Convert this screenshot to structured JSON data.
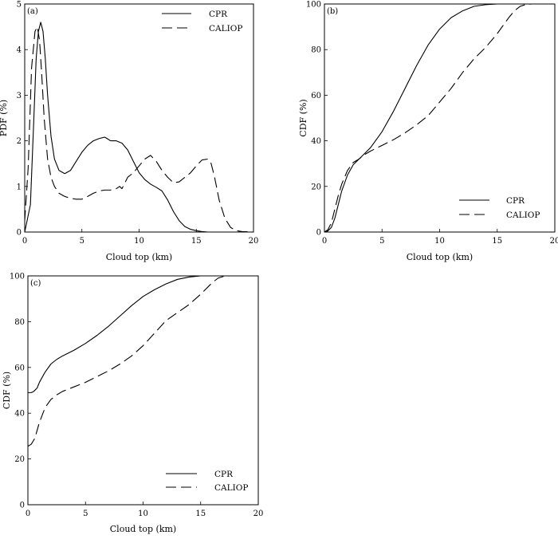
{
  "chart_data": [
    {
      "type": "line",
      "panel_label": "(a)",
      "xlabel": "Cloud top (km)",
      "ylabel": "PDF (%)",
      "xlim": [
        0,
        20
      ],
      "ylim": [
        0,
        5
      ],
      "xticks": [
        0,
        5,
        10,
        15,
        20
      ],
      "yticks": [
        0,
        1,
        2,
        3,
        4,
        5
      ],
      "legend_position": "top-right",
      "series": [
        {
          "name": "CPR",
          "style": "solid",
          "x": [
            0,
            0.5,
            0.8,
            1.0,
            1.2,
            1.4,
            1.6,
            1.8,
            2.0,
            2.3,
            2.6,
            3.0,
            3.5,
            4.0,
            4.5,
            5.0,
            5.5,
            6.0,
            6.5,
            7.0,
            7.2,
            7.5,
            8.0,
            8.5,
            9.0,
            9.5,
            10.0,
            10.5,
            11.0,
            11.5,
            12.0,
            12.5,
            13.0,
            13.5,
            14.0,
            14.5,
            15.0,
            15.5,
            16.0,
            17.0,
            18.0
          ],
          "y": [
            0,
            0.6,
            2.5,
            3.8,
            4.4,
            4.6,
            4.4,
            3.8,
            3.0,
            2.1,
            1.6,
            1.35,
            1.28,
            1.35,
            1.55,
            1.75,
            1.9,
            2.0,
            2.05,
            2.08,
            2.05,
            2.0,
            2.0,
            1.95,
            1.8,
            1.55,
            1.3,
            1.15,
            1.05,
            0.98,
            0.9,
            0.7,
            0.45,
            0.25,
            0.12,
            0.06,
            0.03,
            0.01,
            0,
            0,
            0
          ]
        },
        {
          "name": "CALIOP",
          "style": "dashed",
          "x": [
            0,
            0.3,
            0.6,
            0.9,
            1.1,
            1.3,
            1.5,
            1.7,
            2.0,
            2.3,
            2.6,
            3.0,
            3.5,
            4.0,
            4.5,
            5.0,
            5.5,
            6.0,
            6.5,
            7.0,
            7.5,
            8.0,
            8.3,
            8.5,
            8.8,
            9.0,
            9.5,
            10.0,
            10.5,
            11.0,
            11.5,
            12.0,
            12.5,
            13.0,
            13.5,
            14.0,
            14.5,
            15.0,
            15.5,
            16.0,
            16.3,
            16.6,
            17.0,
            17.5,
            18.0,
            18.5,
            19.0,
            20.0
          ],
          "y": [
            0.25,
            1.4,
            3.6,
            4.4,
            4.5,
            4.2,
            3.4,
            2.5,
            1.6,
            1.2,
            1.0,
            0.85,
            0.78,
            0.74,
            0.72,
            0.72,
            0.78,
            0.85,
            0.9,
            0.92,
            0.92,
            0.95,
            1.0,
            0.95,
            1.1,
            1.2,
            1.3,
            1.45,
            1.6,
            1.68,
            1.55,
            1.35,
            1.2,
            1.08,
            1.1,
            1.2,
            1.3,
            1.45,
            1.58,
            1.6,
            1.5,
            1.2,
            0.7,
            0.3,
            0.1,
            0.03,
            0.01,
            0
          ]
        }
      ]
    },
    {
      "type": "line",
      "panel_label": "(b)",
      "xlabel": "Cloud top (km)",
      "ylabel": "CDF (%)",
      "xlim": [
        0,
        20
      ],
      "ylim": [
        0,
        100
      ],
      "xticks": [
        0,
        5,
        10,
        15,
        20
      ],
      "yticks": [
        0,
        20,
        40,
        60,
        80,
        100
      ],
      "legend_position": "bottom-right",
      "series": [
        {
          "name": "CPR",
          "style": "solid",
          "x": [
            0,
            0.3,
            0.6,
            0.9,
            1.2,
            1.5,
            2.0,
            2.5,
            3.0,
            3.5,
            4.0,
            5.0,
            6.0,
            7.0,
            8.0,
            9.0,
            10.0,
            11.0,
            12.0,
            13.0,
            14.0,
            15.0,
            16.0,
            17.0,
            18.0,
            20.0
          ],
          "y": [
            0,
            0.5,
            2,
            6,
            12,
            18,
            25,
            29.5,
            32,
            34.5,
            37,
            44,
            53,
            63,
            73,
            82,
            89,
            94,
            97,
            99,
            99.7,
            100,
            100,
            100,
            100,
            100
          ]
        },
        {
          "name": "CALIOP",
          "style": "dashed",
          "x": [
            0,
            0.3,
            0.6,
            0.9,
            1.2,
            1.5,
            2.0,
            2.5,
            3.0,
            3.5,
            4.0,
            5.0,
            6.0,
            7.0,
            8.0,
            9.0,
            10.0,
            11.0,
            12.0,
            13.0,
            14.0,
            15.0,
            16.0,
            16.5,
            17.0,
            17.5,
            18.0,
            20.0
          ],
          "y": [
            0,
            1,
            4,
            10,
            16,
            21,
            27,
            30.5,
            32,
            34,
            35.5,
            38,
            40.5,
            43.5,
            47,
            51,
            57,
            63,
            70,
            76,
            81,
            87,
            94,
            97,
            99,
            99.8,
            100,
            100
          ]
        }
      ]
    },
    {
      "type": "line",
      "panel_label": "(c)",
      "xlabel": "Cloud top (km)",
      "ylabel": "CDF (%)",
      "xlim": [
        0,
        20
      ],
      "ylim": [
        0,
        100
      ],
      "xticks": [
        0,
        5,
        10,
        15,
        20
      ],
      "yticks": [
        0,
        20,
        40,
        60,
        80,
        100
      ],
      "legend_position": "bottom-center",
      "series": [
        {
          "name": "CPR",
          "style": "solid",
          "x": [
            0,
            0.3,
            0.5,
            0.8,
            1.0,
            1.5,
            2.0,
            2.5,
            3.0,
            4.0,
            5.0,
            6.0,
            7.0,
            8.0,
            9.0,
            10.0,
            11.0,
            12.0,
            13.0,
            14.0,
            15.0,
            16.0,
            17.0,
            20.0
          ],
          "y": [
            49,
            49,
            49.5,
            51,
            53.5,
            58,
            61.5,
            63.5,
            65,
            67.5,
            70.5,
            74,
            78,
            82.5,
            87,
            91,
            94,
            96.5,
            98.5,
            99.5,
            100,
            100,
            100,
            100
          ]
        },
        {
          "name": "CALIOP",
          "style": "dashed",
          "x": [
            0,
            0.3,
            0.6,
            1.0,
            1.5,
            2.0,
            2.5,
            3.0,
            4.0,
            5.0,
            6.0,
            7.0,
            8.0,
            9.0,
            10.0,
            11.0,
            12.0,
            13.0,
            14.0,
            15.0,
            16.0,
            16.5,
            17.0,
            17.5,
            18.0,
            20.0
          ],
          "y": [
            25.5,
            26.5,
            29,
            36,
            42.5,
            46,
            48,
            49.5,
            51.5,
            53.5,
            56,
            58.5,
            61.5,
            65,
            69.5,
            75,
            80.5,
            84,
            87.5,
            92,
            97,
            99,
            99.8,
            100,
            100,
            100
          ]
        }
      ]
    }
  ]
}
